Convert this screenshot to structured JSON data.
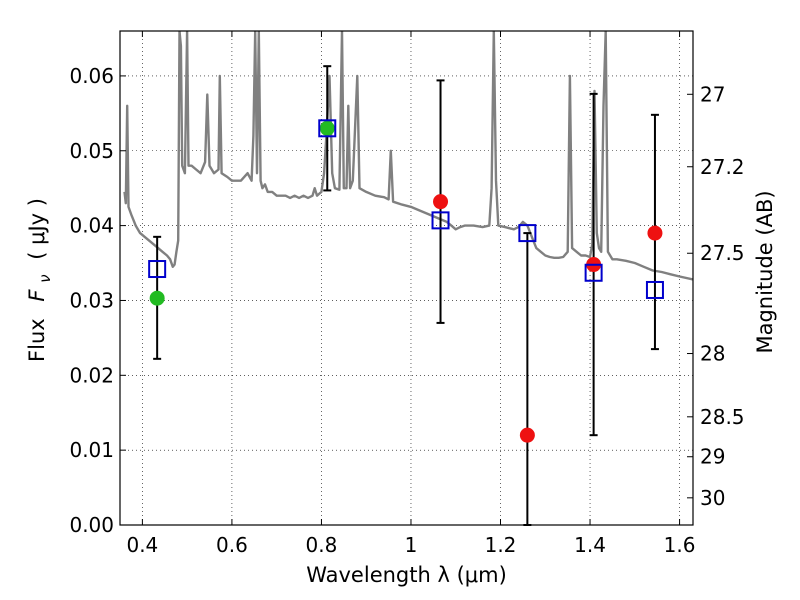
{
  "chart_data": {
    "type": "scatter",
    "xlabel": "Wavelength  λ (μm)",
    "ylabel_text": "Flux",
    "ylabel_symbol": "F",
    "ylabel_sub": "ν",
    "ylabel_units": "( μJy )",
    "y2label": "Magnitude (AB)",
    "xlim": [
      0.35,
      1.63
    ],
    "ylim": [
      0.0,
      0.066
    ],
    "grid": true,
    "xticks": [
      {
        "v": 0.4,
        "label": "0.4"
      },
      {
        "v": 0.6,
        "label": "0.6"
      },
      {
        "v": 0.8,
        "label": "0.8"
      },
      {
        "v": 1.0,
        "label": "1"
      },
      {
        "v": 1.2,
        "label": "1.2"
      },
      {
        "v": 1.4,
        "label": "1.4"
      },
      {
        "v": 1.6,
        "label": "1.6"
      }
    ],
    "yticks": [
      {
        "v": 0.0,
        "label": "0.00"
      },
      {
        "v": 0.01,
        "label": "0.01"
      },
      {
        "v": 0.02,
        "label": "0.02"
      },
      {
        "v": 0.03,
        "label": "0.03"
      },
      {
        "v": 0.04,
        "label": "0.04"
      },
      {
        "v": 0.05,
        "label": "0.05"
      },
      {
        "v": 0.06,
        "label": "0.06"
      }
    ],
    "y2ticks": [
      {
        "mag": 27,
        "label": "27"
      },
      {
        "mag": 27.2,
        "label": "27.2"
      },
      {
        "mag": 27.5,
        "label": "27.5"
      },
      {
        "mag": 28,
        "label": "28"
      },
      {
        "mag": 28.5,
        "label": "28.5"
      },
      {
        "mag": 29,
        "label": "29"
      },
      {
        "mag": 30,
        "label": "30"
      }
    ],
    "spectrum": {
      "color": "#808080",
      "points": [
        [
          0.36,
          0.0445
        ],
        [
          0.363,
          0.043
        ],
        [
          0.366,
          0.056
        ],
        [
          0.369,
          0.0425
        ],
        [
          0.375,
          0.0415
        ],
        [
          0.385,
          0.04
        ],
        [
          0.395,
          0.039
        ],
        [
          0.405,
          0.0385
        ],
        [
          0.415,
          0.038
        ],
        [
          0.425,
          0.0375
        ],
        [
          0.435,
          0.037
        ],
        [
          0.445,
          0.0365
        ],
        [
          0.455,
          0.036
        ],
        [
          0.462,
          0.0355
        ],
        [
          0.468,
          0.0345
        ],
        [
          0.472,
          0.0348
        ],
        [
          0.476,
          0.0365
        ],
        [
          0.48,
          0.038
        ],
        [
          0.483,
          0.066
        ],
        [
          0.486,
          0.064
        ],
        [
          0.489,
          0.048
        ],
        [
          0.495,
          0.047
        ],
        [
          0.5,
          0.066
        ],
        [
          0.503,
          0.048
        ],
        [
          0.51,
          0.048
        ],
        [
          0.52,
          0.0475
        ],
        [
          0.53,
          0.047
        ],
        [
          0.54,
          0.0485
        ],
        [
          0.545,
          0.0575
        ],
        [
          0.55,
          0.048
        ],
        [
          0.56,
          0.047
        ],
        [
          0.57,
          0.0475
        ],
        [
          0.573,
          0.06
        ],
        [
          0.577,
          0.047
        ],
        [
          0.59,
          0.0465
        ],
        [
          0.6,
          0.046
        ],
        [
          0.61,
          0.046
        ],
        [
          0.62,
          0.046
        ],
        [
          0.635,
          0.047
        ],
        [
          0.644,
          0.046
        ],
        [
          0.648,
          0.052
        ],
        [
          0.652,
          0.066
        ],
        [
          0.656,
          0.047
        ],
        [
          0.66,
          0.066
        ],
        [
          0.664,
          0.046
        ],
        [
          0.668,
          0.045
        ],
        [
          0.674,
          0.0455
        ],
        [
          0.68,
          0.0445
        ],
        [
          0.69,
          0.0445
        ],
        [
          0.7,
          0.044
        ],
        [
          0.71,
          0.044
        ],
        [
          0.72,
          0.044
        ],
        [
          0.73,
          0.0437
        ],
        [
          0.74,
          0.044
        ],
        [
          0.75,
          0.0437
        ],
        [
          0.76,
          0.044
        ],
        [
          0.77,
          0.0437
        ],
        [
          0.78,
          0.044
        ],
        [
          0.785,
          0.045
        ],
        [
          0.79,
          0.044
        ],
        [
          0.8,
          0.0445
        ],
        [
          0.806,
          0.047
        ],
        [
          0.812,
          0.053
        ],
        [
          0.818,
          0.06
        ],
        [
          0.824,
          0.047
        ],
        [
          0.83,
          0.045
        ],
        [
          0.84,
          0.0448
        ],
        [
          0.846,
          0.066
        ],
        [
          0.85,
          0.045
        ],
        [
          0.856,
          0.045
        ],
        [
          0.86,
          0.056
        ],
        [
          0.864,
          0.045
        ],
        [
          0.87,
          0.046
        ],
        [
          0.88,
          0.06
        ],
        [
          0.885,
          0.045
        ],
        [
          0.9,
          0.0445
        ],
        [
          0.92,
          0.044
        ],
        [
          0.94,
          0.0438
        ],
        [
          0.95,
          0.0435
        ],
        [
          0.955,
          0.05
        ],
        [
          0.96,
          0.0432
        ],
        [
          0.98,
          0.0428
        ],
        [
          1.0,
          0.0425
        ],
        [
          1.02,
          0.042
        ],
        [
          1.04,
          0.0415
        ],
        [
          1.06,
          0.041
        ],
        [
          1.08,
          0.0405
        ],
        [
          1.09,
          0.04
        ],
        [
          1.1,
          0.0395
        ],
        [
          1.11,
          0.0398
        ],
        [
          1.12,
          0.04
        ],
        [
          1.14,
          0.04
        ],
        [
          1.16,
          0.0398
        ],
        [
          1.175,
          0.04
        ],
        [
          1.18,
          0.045
        ],
        [
          1.185,
          0.066
        ],
        [
          1.19,
          0.046
        ],
        [
          1.195,
          0.04
        ],
        [
          1.21,
          0.0398
        ],
        [
          1.23,
          0.0395
        ],
        [
          1.24,
          0.0398
        ],
        [
          1.25,
          0.0405
        ],
        [
          1.26,
          0.04
        ],
        [
          1.27,
          0.0385
        ],
        [
          1.28,
          0.037
        ],
        [
          1.29,
          0.0365
        ],
        [
          1.3,
          0.036
        ],
        [
          1.31,
          0.0358
        ],
        [
          1.32,
          0.0357
        ],
        [
          1.33,
          0.0357
        ],
        [
          1.34,
          0.0358
        ],
        [
          1.35,
          0.0365
        ],
        [
          1.355,
          0.06
        ],
        [
          1.36,
          0.037
        ],
        [
          1.37,
          0.0365
        ],
        [
          1.38,
          0.036
        ],
        [
          1.39,
          0.036
        ],
        [
          1.4,
          0.0358
        ],
        [
          1.405,
          0.0375
        ],
        [
          1.41,
          0.058
        ],
        [
          1.415,
          0.039
        ],
        [
          1.42,
          0.037
        ],
        [
          1.425,
          0.0365
        ],
        [
          1.43,
          0.056
        ],
        [
          1.435,
          0.066
        ],
        [
          1.44,
          0.0365
        ],
        [
          1.45,
          0.0355
        ],
        [
          1.46,
          0.0355
        ],
        [
          1.48,
          0.0353
        ],
        [
          1.5,
          0.035
        ],
        [
          1.52,
          0.0345
        ],
        [
          1.54,
          0.034
        ],
        [
          1.56,
          0.0338
        ],
        [
          1.58,
          0.0335
        ],
        [
          1.6,
          0.0332
        ],
        [
          1.63,
          0.0328
        ]
      ]
    },
    "model_boxes": {
      "color": "#0000cc",
      "points": [
        [
          0.433,
          0.0342
        ],
        [
          0.813,
          0.053
        ],
        [
          1.066,
          0.0407
        ],
        [
          1.26,
          0.039
        ],
        [
          1.408,
          0.0337
        ],
        [
          1.545,
          0.0314
        ]
      ]
    },
    "observations": [
      {
        "x": 0.433,
        "y": 0.0303,
        "err_low": 0.0222,
        "err_high": 0.0385,
        "color": "#22bb22"
      },
      {
        "x": 0.813,
        "y": 0.053,
        "err_low": 0.0447,
        "err_high": 0.0613,
        "color": "#22bb22"
      },
      {
        "x": 1.066,
        "y": 0.0432,
        "err_low": 0.027,
        "err_high": 0.0594,
        "color": "#ee1111"
      },
      {
        "x": 1.26,
        "y": 0.012,
        "err_low": 0.0,
        "err_high": 0.039,
        "color": "#ee1111"
      },
      {
        "x": 1.408,
        "y": 0.0348,
        "err_low": 0.012,
        "err_high": 0.0576,
        "color": "#ee1111"
      },
      {
        "x": 1.545,
        "y": 0.039,
        "err_low": 0.0235,
        "err_high": 0.0548,
        "color": "#ee1111"
      }
    ]
  }
}
